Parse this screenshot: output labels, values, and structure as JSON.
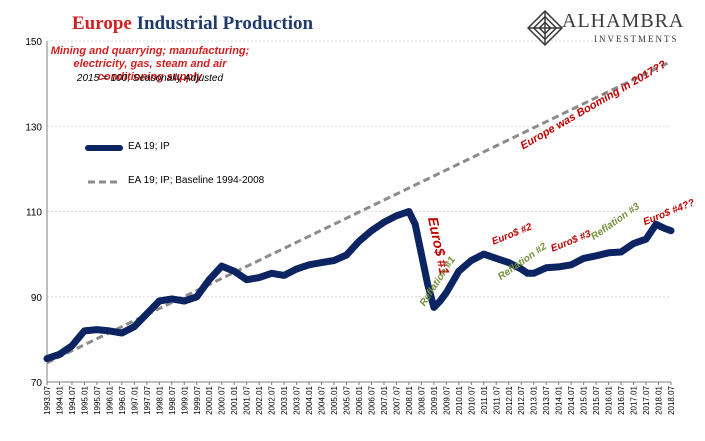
{
  "title": {
    "highlight": "Europe",
    "rest": "Industrial Production"
  },
  "subtitle": "Mining and quarrying; manufacturing; electricity, gas, steam and air conditioning supply",
  "subnote": "2015 = 100; Seasonally Adjusted",
  "logo": {
    "name": "ALHAMBRA",
    "sub": "INVESTMENTS"
  },
  "colors": {
    "series": "#0c2461",
    "baseline": "#8c8c8c",
    "annotation_red": "#c00000",
    "annotation_green": "#76923c",
    "title_dark": "#1f3a6b"
  },
  "chart_data": {
    "type": "line",
    "ylim": [
      70,
      150
    ],
    "yticks": [
      70,
      90,
      110,
      130,
      150
    ],
    "xlabels": [
      "1993.07",
      "1994.01",
      "1994.07",
      "1995.01",
      "1995.07",
      "1996.01",
      "1996.07",
      "1997.01",
      "1997.07",
      "1998.01",
      "1998.07",
      "1999.01",
      "1999.07",
      "2000.01",
      "2000.07",
      "2001.01",
      "2001.07",
      "2002.01",
      "2002.07",
      "2003.01",
      "2003.07",
      "2004.01",
      "2004.07",
      "2005.01",
      "2005.07",
      "2006.01",
      "2006.07",
      "2007.01",
      "2007.07",
      "2008.01",
      "2008.07",
      "2009.01",
      "2009.07",
      "2010.01",
      "2010.07",
      "2011.01",
      "2011.07",
      "2012.01",
      "2012.07",
      "2013.01",
      "2013.07",
      "2014.01",
      "2014.07",
      "2015.01",
      "2015.07",
      "2016.01",
      "2016.07",
      "2017.01",
      "2017.07",
      "2018.01",
      "2018.07"
    ],
    "series": [
      {
        "name": "EA 19; IP",
        "style": "solid",
        "x": [
          1993.5,
          1994.0,
          1994.5,
          1995.0,
          1995.5,
          1996.0,
          1996.5,
          1997.0,
          1997.5,
          1998.0,
          1998.5,
          1999.0,
          1999.5,
          2000.0,
          2000.5,
          2001.0,
          2001.5,
          2002.0,
          2002.5,
          2003.0,
          2003.5,
          2004.0,
          2004.5,
          2005.0,
          2005.5,
          2006.0,
          2006.5,
          2007.0,
          2007.5,
          2008.0,
          2008.25,
          2008.5,
          2008.75,
          2009.0,
          2009.25,
          2009.5,
          2010.0,
          2010.5,
          2011.0,
          2011.5,
          2012.0,
          2012.5,
          2012.75,
          2013.0,
          2013.5,
          2014.0,
          2014.5,
          2015.0,
          2015.5,
          2016.0,
          2016.5,
          2017.0,
          2017.5,
          2017.9,
          2018.25,
          2018.5
        ],
        "y": [
          75.5,
          76.5,
          78.5,
          82,
          82.3,
          82,
          81.5,
          83,
          86,
          89,
          89.5,
          89,
          90,
          94,
          97.2,
          96,
          94,
          94.5,
          95.5,
          95,
          96.5,
          97.5,
          98,
          98.5,
          99.8,
          103,
          105.5,
          107.5,
          109,
          110,
          107,
          100,
          93,
          87.5,
          89,
          91,
          96,
          98.5,
          100,
          99,
          98,
          96.5,
          95.5,
          95.5,
          96.8,
          97,
          97.5,
          99,
          99.6,
          100.3,
          100.5,
          102.5,
          103.5,
          107,
          106,
          105.5
        ]
      },
      {
        "name": "EA 19; IP; Baseline 1994-2008",
        "style": "dashed",
        "x": [
          1993.5,
          2018.5
        ],
        "y": [
          74.5,
          145.2
        ]
      }
    ],
    "annotations": [
      {
        "text": "Europe was Booming in 2017??",
        "color": "red"
      },
      {
        "text": "Euro$ #1",
        "color": "red"
      },
      {
        "text": "Reflation #1",
        "color": "green"
      },
      {
        "text": "Euro$ #2",
        "color": "red"
      },
      {
        "text": "Reflation #2",
        "color": "green"
      },
      {
        "text": "Euro$ #3",
        "color": "red"
      },
      {
        "text": "Reflation #3",
        "color": "green"
      },
      {
        "text": "Euro$ #4??",
        "color": "red"
      }
    ]
  }
}
